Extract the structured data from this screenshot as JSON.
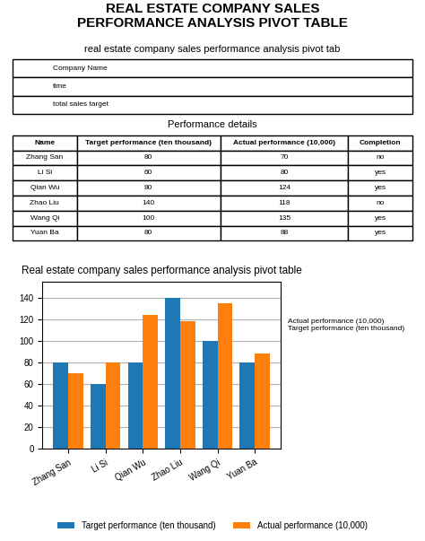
{
  "title": "REAL ESTATE COMPANY SALES\nPERFORMANCE ANALYSIS PIVOT TABLE",
  "chart_data": [
    {
      "type": "table",
      "title": "real estate company sales performance analysis pivot tab",
      "rows": [
        [
          "Company Name"
        ],
        [
          "time"
        ],
        [
          "total sales target"
        ]
      ]
    },
    {
      "type": "table",
      "title": "Performance details",
      "columns": [
        "Name",
        "Target performance (ten thousand)",
        "Actual performance (10,000)",
        "Completion"
      ],
      "rows": [
        [
          "Zhang San",
          "80",
          "70",
          "no"
        ],
        [
          "Li Si",
          "60",
          "80",
          "yes"
        ],
        [
          "Qian Wu",
          "80",
          "124",
          "yes"
        ],
        [
          "Zhao Liu",
          "140",
          "118",
          "no"
        ],
        [
          "Wang Qi",
          "100",
          "135",
          "yes"
        ],
        [
          "Yuan Ba",
          "80",
          "88",
          "yes"
        ]
      ]
    },
    {
      "type": "bar",
      "title": "Real estate company sales performance analysis pivot table",
      "categories": [
        "Zhang San",
        "Li Si",
        "Qian Wu",
        "Zhao Liu",
        "Wang Qi",
        "Yuan Ba"
      ],
      "series": [
        {
          "name": "Target performance (ten thousand)",
          "values": [
            80,
            60,
            80,
            140,
            100,
            80
          ]
        },
        {
          "name": "Actual performance (10,000)",
          "values": [
            70,
            80,
            124,
            118,
            135,
            88
          ]
        }
      ],
      "ylim": [
        0,
        155
      ],
      "yticks": [
        0,
        20,
        40,
        60,
        80,
        100,
        120,
        140
      ],
      "grid": true,
      "legend": "lower center",
      "annotations": [
        "Actual performance (10,000)\nTarget performance (ten thousand)"
      ]
    }
  ]
}
